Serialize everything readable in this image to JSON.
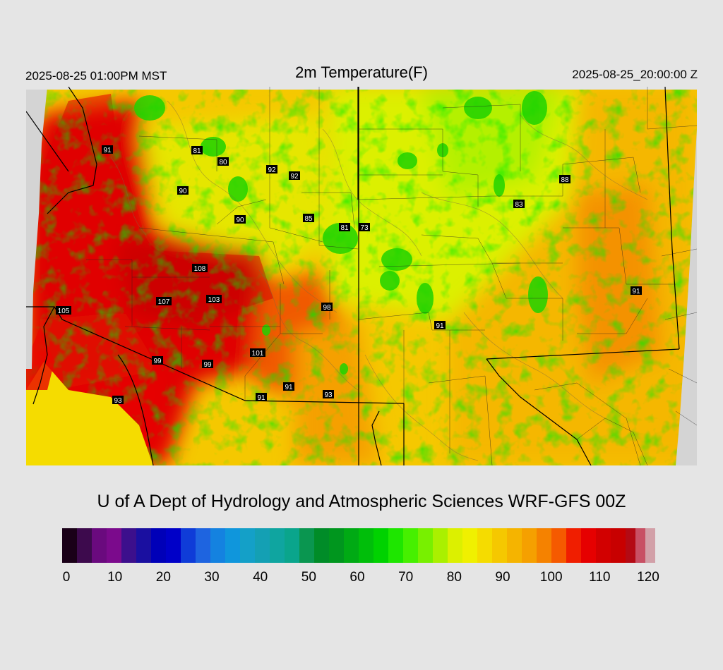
{
  "header": {
    "local_time": "2025-08-25 01:00PM MST",
    "title": "2m Temperature(F)",
    "utc_time": "2025-08-25_20:00:00 Z"
  },
  "footer": {
    "credit": "U of A Dept of Hydrology and Atmospheric Sciences WRF-GFS 00Z"
  },
  "colorbar": {
    "min": 0,
    "max": 120,
    "tick_labels": [
      "0",
      "10",
      "20",
      "30",
      "40",
      "50",
      "60",
      "70",
      "80",
      "90",
      "100",
      "110",
      "120"
    ],
    "stops": [
      {
        "v": 0,
        "c": "#1a0018"
      },
      {
        "v": 3,
        "c": "#3d0a4d"
      },
      {
        "v": 6,
        "c": "#6a0a7e"
      },
      {
        "v": 9,
        "c": "#7b0a8c"
      },
      {
        "v": 12,
        "c": "#3c0f8c"
      },
      {
        "v": 15,
        "c": "#1a0fa0"
      },
      {
        "v": 18,
        "c": "#0000b8"
      },
      {
        "v": 21,
        "c": "#0000c8"
      },
      {
        "v": 24,
        "c": "#0f3cd8"
      },
      {
        "v": 27,
        "c": "#1e64e0"
      },
      {
        "v": 30,
        "c": "#1482e0"
      },
      {
        "v": 33,
        "c": "#0f96dc"
      },
      {
        "v": 36,
        "c": "#14a0c8"
      },
      {
        "v": 39,
        "c": "#14a0b4"
      },
      {
        "v": 42,
        "c": "#0fa5a0"
      },
      {
        "v": 45,
        "c": "#0aa58c"
      },
      {
        "v": 48,
        "c": "#0a9650"
      },
      {
        "v": 51,
        "c": "#008c28"
      },
      {
        "v": 54,
        "c": "#00961e"
      },
      {
        "v": 57,
        "c": "#00aa14"
      },
      {
        "v": 60,
        "c": "#00be0a"
      },
      {
        "v": 63,
        "c": "#00d200"
      },
      {
        "v": 66,
        "c": "#1ee600"
      },
      {
        "v": 69,
        "c": "#46f000"
      },
      {
        "v": 72,
        "c": "#78f000"
      },
      {
        "v": 75,
        "c": "#aaf000"
      },
      {
        "v": 78,
        "c": "#dcf000"
      },
      {
        "v": 81,
        "c": "#f0f000"
      },
      {
        "v": 84,
        "c": "#f5dc00"
      },
      {
        "v": 87,
        "c": "#f5c800"
      },
      {
        "v": 90,
        "c": "#f5b400"
      },
      {
        "v": 93,
        "c": "#f5a000"
      },
      {
        "v": 96,
        "c": "#f58200"
      },
      {
        "v": 99,
        "c": "#f55a00"
      },
      {
        "v": 102,
        "c": "#f01e00"
      },
      {
        "v": 105,
        "c": "#e60000"
      },
      {
        "v": 108,
        "c": "#d20000"
      },
      {
        "v": 111,
        "c": "#c80000"
      },
      {
        "v": 114,
        "c": "#b40a14"
      },
      {
        "v": 116,
        "c": "#c85064"
      },
      {
        "v": 118,
        "c": "#d2a0a8"
      },
      {
        "v": 120,
        "c": "#dcdcdc"
      }
    ]
  },
  "stations": [
    {
      "value": "91"
    },
    {
      "value": "81"
    },
    {
      "value": "80"
    },
    {
      "value": "92"
    },
    {
      "value": "92"
    },
    {
      "value": "90"
    },
    {
      "value": "88"
    },
    {
      "value": "83"
    },
    {
      "value": "90"
    },
    {
      "value": "85"
    },
    {
      "value": "81"
    },
    {
      "value": "73"
    },
    {
      "value": "108"
    },
    {
      "value": "107"
    },
    {
      "value": "103"
    },
    {
      "value": "105"
    },
    {
      "value": "98"
    },
    {
      "value": "91"
    },
    {
      "value": "91"
    },
    {
      "value": "101"
    },
    {
      "value": "99"
    },
    {
      "value": "99"
    },
    {
      "value": "91"
    },
    {
      "value": "93"
    },
    {
      "value": "93"
    },
    {
      "value": "91"
    }
  ]
}
